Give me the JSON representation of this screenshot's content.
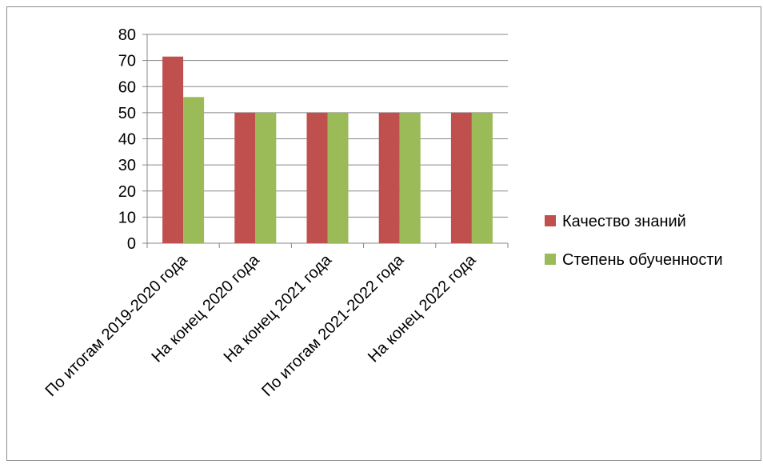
{
  "chart_data": {
    "type": "bar",
    "categories": [
      "По итогам 2019-2020 года",
      "На конец 2020 года",
      "На конец 2021 года",
      "По итогам 2021-2022 года",
      "На конец 2022 года"
    ],
    "series": [
      {
        "name": "Качество знаний",
        "color": "#c0504d",
        "values": [
          71.5,
          50,
          50,
          50,
          50
        ]
      },
      {
        "name": "Степень обученности",
        "color": "#9bbb59",
        "values": [
          56,
          50,
          50,
          50,
          50
        ]
      }
    ],
    "ylim": [
      0,
      80
    ],
    "yticks": [
      0,
      10,
      20,
      30,
      40,
      50,
      60,
      70,
      80
    ],
    "grid": true,
    "legend_position": "right",
    "title": "",
    "xlabel": "",
    "ylabel": "",
    "colors": {
      "grid": "#878787",
      "axis": "#878787",
      "frame": "#8c8c8c"
    }
  }
}
